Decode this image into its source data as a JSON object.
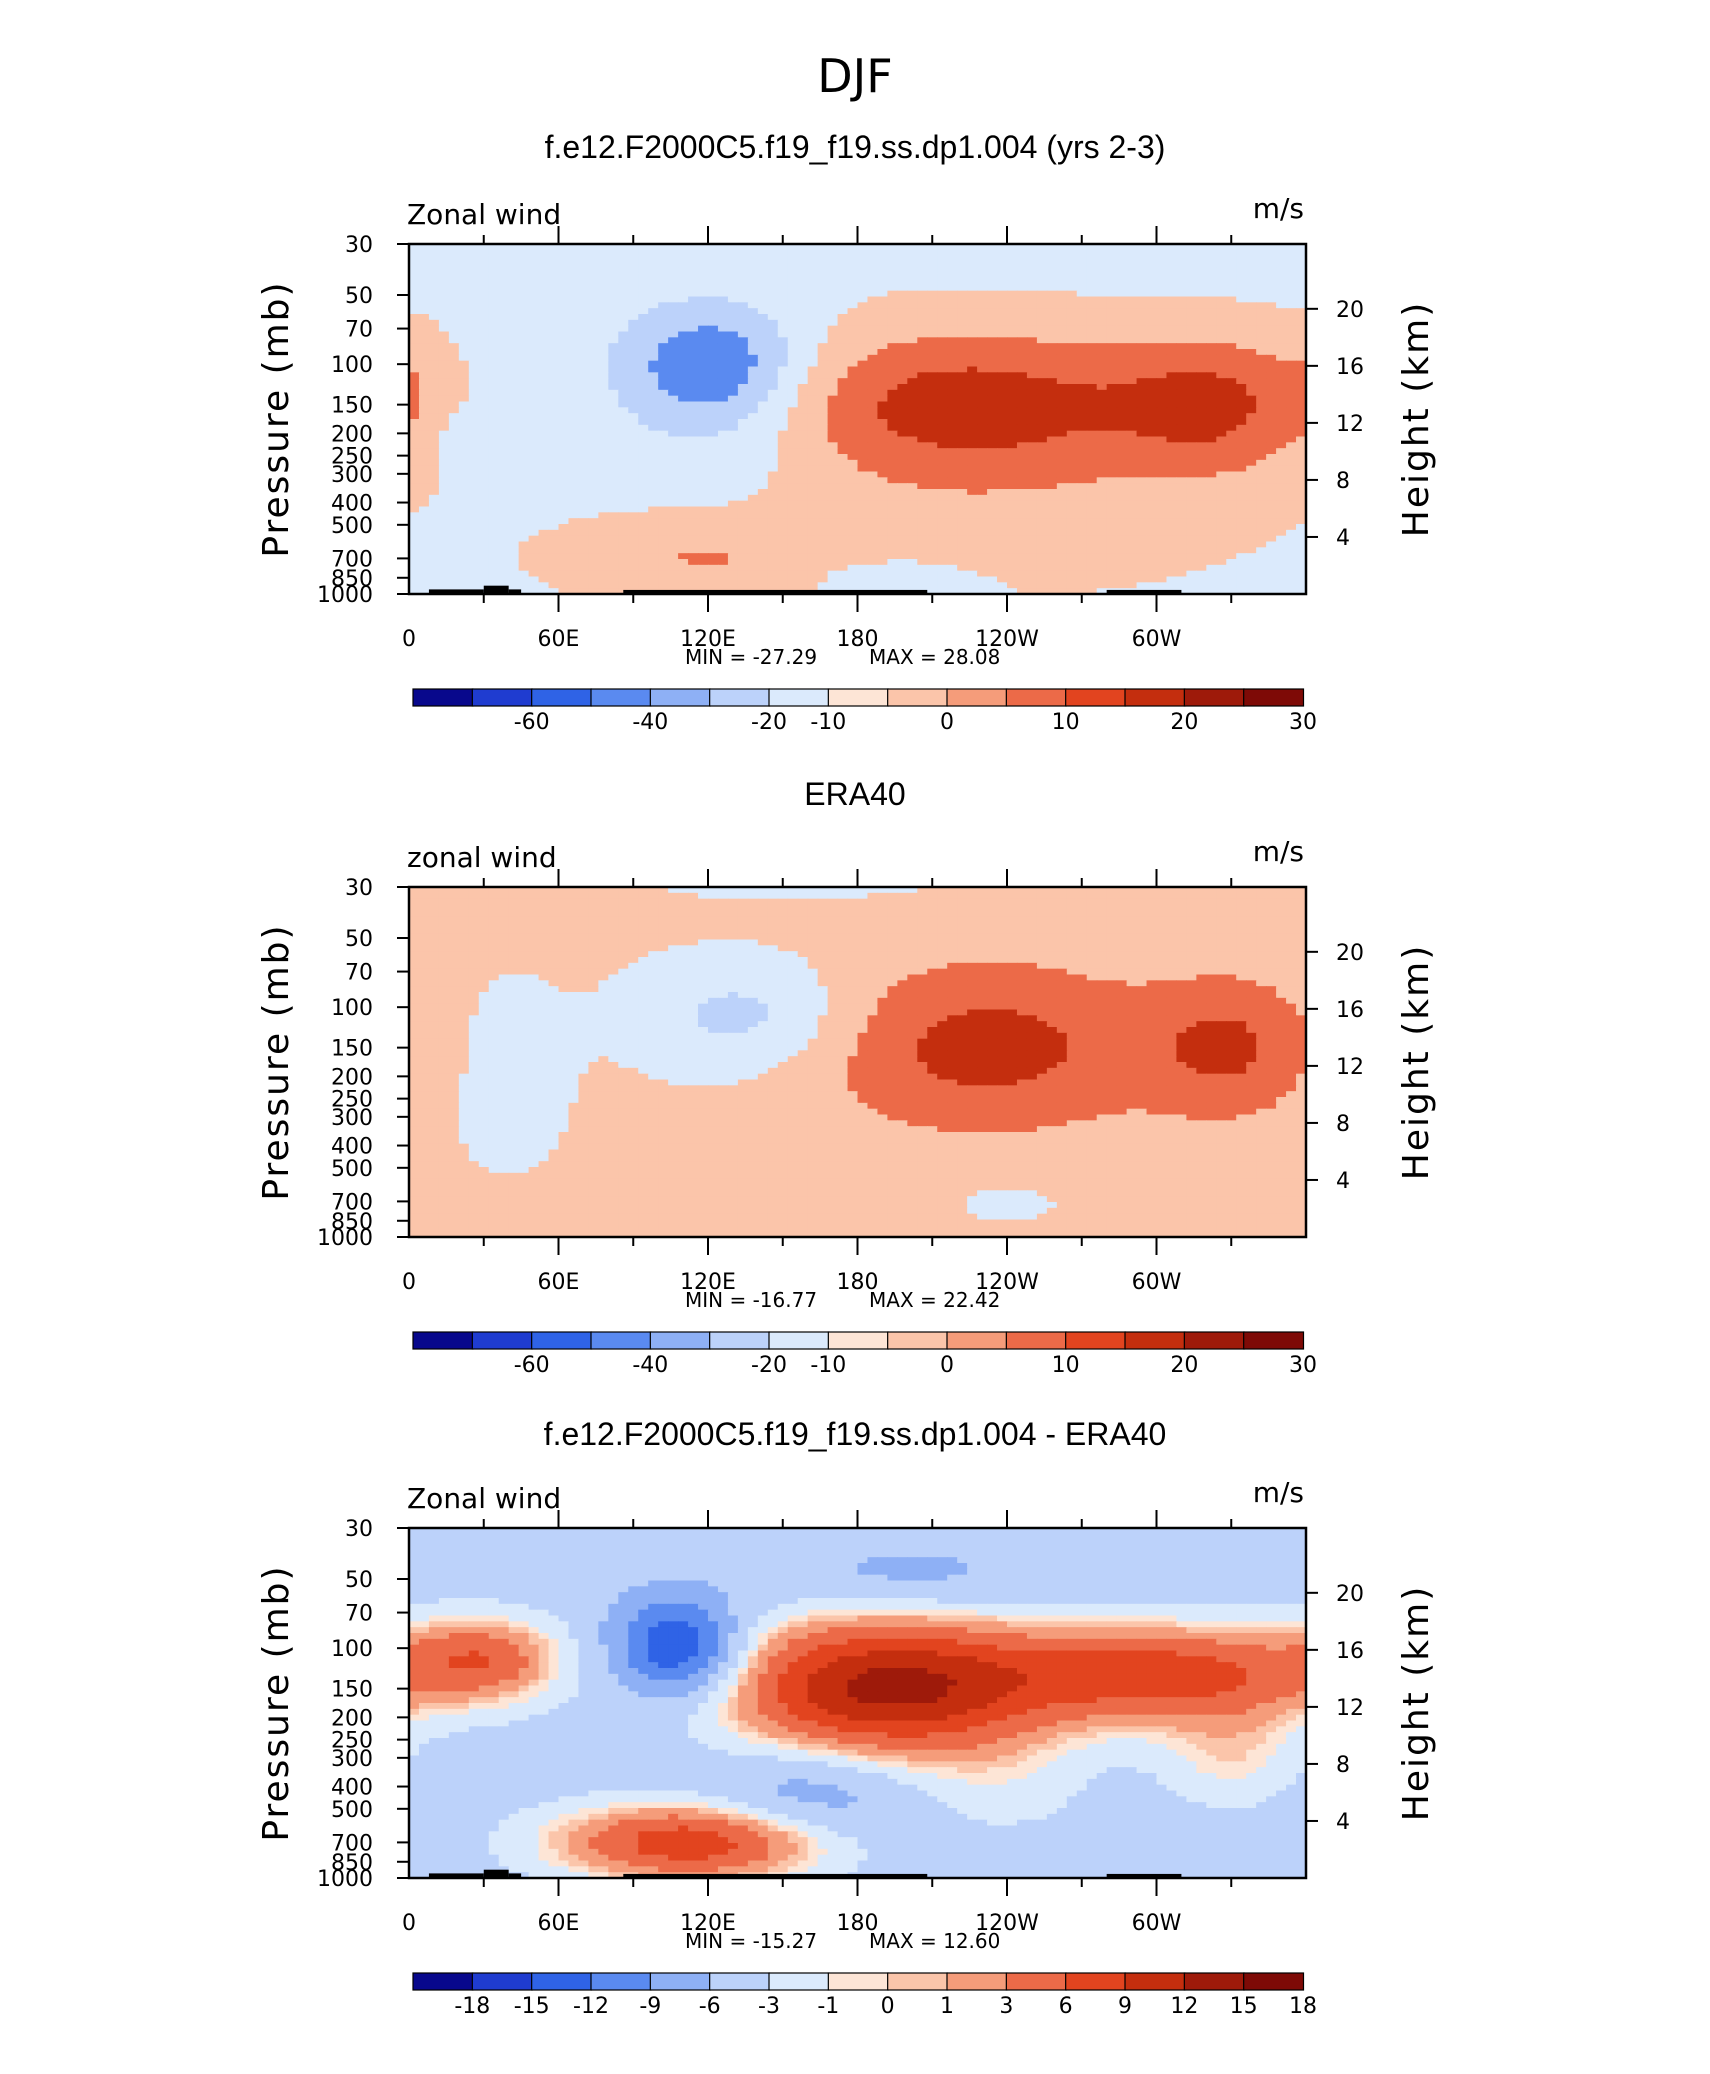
{
  "figure_title": "DJF",
  "colors": {
    "neg": [
      "#08088c",
      "#1f3cd0",
      "#2f63e6",
      "#5a8af0",
      "#8eb0f5",
      "#bcd2fa",
      "#dbeafc"
    ],
    "pos": [
      "#fde5d6",
      "#fbc5aa",
      "#f59c7a",
      "#ec6a48",
      "#e2441f",
      "#c42e0e",
      "#9e1a0a",
      "#7e0a06"
    ],
    "neutral": "#fde5d6",
    "land": "#000000"
  },
  "chart_data": [
    {
      "type": "contour",
      "title": "f.e12.F2000C5.f19_f19.ss.dp1.004 (yrs 2-3)",
      "left_label": "Zonal wind",
      "right_label": "m/s",
      "ylabel": "Pressure (mb)",
      "y2label": "Height (km)",
      "pressure_ticks": [
        30,
        50,
        70,
        100,
        150,
        200,
        250,
        300,
        400,
        500,
        700,
        850,
        1000
      ],
      "height_ticks": [
        4,
        8,
        12,
        16,
        20
      ],
      "lon_ticks": [
        {
          "lon": 0,
          "label": "0"
        },
        {
          "lon": 60,
          "label": "60E"
        },
        {
          "lon": 120,
          "label": "120E"
        },
        {
          "lon": 180,
          "label": "180"
        },
        {
          "lon": 240,
          "label": "120W"
        },
        {
          "lon": 300,
          "label": "60W"
        }
      ],
      "xlim": [
        0,
        360
      ],
      "ylim": [
        1000,
        30
      ],
      "min_label": "MIN = -27.29",
      "max_label": "MAX = 28.08",
      "stats": {
        "min": -27.29,
        "max": 28.08
      },
      "colorbar_labels": [
        "-60",
        "-40",
        "-20",
        "-10",
        "0",
        "10",
        "20",
        "30"
      ],
      "colorbar_levels": [
        -60,
        -40,
        -20,
        -10,
        0,
        10,
        20,
        30
      ],
      "background_value": -3,
      "features": [
        {
          "lon": 225,
          "p": 150,
          "amp": 28,
          "wl": 60,
          "wp": 0.55
        },
        {
          "lon": 325,
          "p": 150,
          "amp": 20,
          "wl": 28,
          "wp": 0.5
        },
        {
          "lon": 122,
          "p": 100,
          "amp": -27,
          "wl": 26,
          "wp": 0.42
        },
        {
          "lon": 125,
          "p": 200,
          "amp": -7,
          "wl": 30,
          "wp": 0.5
        },
        {
          "lon": 240,
          "p": 500,
          "amp": 6,
          "wl": 80,
          "wp": 0.6
        },
        {
          "lon": 115,
          "p": 700,
          "amp": 12,
          "wl": 40,
          "wp": 0.3
        },
        {
          "lon": 190,
          "p": 850,
          "amp": -6,
          "wl": 25,
          "wp": 0.15
        },
        {
          "lon": 2,
          "p": 120,
          "amp": 5,
          "wl": 10,
          "wp": 0.4
        },
        {
          "lon": 20,
          "p": 200,
          "amp": -5,
          "wl": 8,
          "wp": 0.2
        }
      ],
      "topography": [
        [
          8,
          30,
          955
        ],
        [
          30,
          40,
          920
        ],
        [
          40,
          45,
          955
        ],
        [
          86,
          208,
          960
        ],
        [
          280,
          310,
          960
        ]
      ]
    },
    {
      "type": "contour",
      "title": "ERA40",
      "left_label": "zonal wind",
      "right_label": "m/s",
      "ylabel": "Pressure (mb)",
      "y2label": "Height (km)",
      "pressure_ticks": [
        30,
        50,
        70,
        100,
        150,
        200,
        250,
        300,
        400,
        500,
        700,
        850,
        1000
      ],
      "height_ticks": [
        4,
        8,
        12,
        16,
        20
      ],
      "lon_ticks": [
        {
          "lon": 0,
          "label": "0"
        },
        {
          "lon": 60,
          "label": "60E"
        },
        {
          "lon": 120,
          "label": "120E"
        },
        {
          "lon": 180,
          "label": "180"
        },
        {
          "lon": 240,
          "label": "120W"
        },
        {
          "lon": 300,
          "label": "60W"
        }
      ],
      "xlim": [
        0,
        360
      ],
      "ylim": [
        1000,
        30
      ],
      "min_label": "MIN = -16.77",
      "max_label": "MAX = 22.42",
      "stats": {
        "min": -16.77,
        "max": 22.42
      },
      "colorbar_labels": [
        "-60",
        "-40",
        "-20",
        "-10",
        "0",
        "10",
        "20",
        "30"
      ],
      "colorbar_levels": [
        -60,
        -40,
        -20,
        -10,
        0,
        10,
        20,
        30
      ],
      "background_value": 2,
      "features": [
        {
          "lon": 232,
          "p": 150,
          "amp": 22,
          "wl": 48,
          "wp": 0.6
        },
        {
          "lon": 330,
          "p": 150,
          "amp": 18,
          "wl": 24,
          "wp": 0.5
        },
        {
          "lon": 135,
          "p": 110,
          "amp": -16,
          "wl": 30,
          "wp": 0.4
        },
        {
          "lon": 40,
          "p": 200,
          "amp": -6,
          "wl": 18,
          "wp": 0.7
        },
        {
          "lon": 120,
          "p": 700,
          "amp": 5,
          "wl": 35,
          "wp": 0.25
        },
        {
          "lon": 240,
          "p": 700,
          "amp": -4,
          "wl": 20,
          "wp": 0.2
        },
        {
          "lon": 160,
          "p": 30,
          "amp": -4,
          "wl": 50,
          "wp": 0.1
        }
      ],
      "topography": []
    },
    {
      "type": "contour",
      "title": "f.e12.F2000C5.f19_f19.ss.dp1.004 - ERA40",
      "left_label": "Zonal wind",
      "right_label": "m/s",
      "ylabel": "Pressure (mb)",
      "y2label": "Height (km)",
      "pressure_ticks": [
        30,
        50,
        70,
        100,
        150,
        200,
        250,
        300,
        400,
        500,
        700,
        850,
        1000
      ],
      "height_ticks": [
        4,
        8,
        12,
        16,
        20
      ],
      "lon_ticks": [
        {
          "lon": 0,
          "label": "0"
        },
        {
          "lon": 60,
          "label": "60E"
        },
        {
          "lon": 120,
          "label": "120E"
        },
        {
          "lon": 180,
          "label": "180"
        },
        {
          "lon": 240,
          "label": "120W"
        },
        {
          "lon": 300,
          "label": "60W"
        }
      ],
      "xlim": [
        0,
        360
      ],
      "ylim": [
        1000,
        30
      ],
      "min_label": "MIN = -15.27",
      "max_label": "MAX = 12.60",
      "stats": {
        "min": -15.27,
        "max": 12.6
      },
      "colorbar_labels": [
        "-18",
        "-15",
        "-12",
        "-9",
        "-6",
        "-3",
        "-1",
        "0",
        "1",
        "3",
        "6",
        "9",
        "12",
        "15",
        "18"
      ],
      "colorbar_levels": [
        -18,
        -15,
        -12,
        -9,
        -6,
        -3,
        -1,
        0,
        1,
        3,
        6,
        9,
        12,
        15,
        18
      ],
      "background_value": -4.5,
      "features": [
        {
          "lon": 190,
          "p": 150,
          "amp": 17,
          "wl": 45,
          "wp": 0.5
        },
        {
          "lon": 305,
          "p": 130,
          "amp": 12,
          "wl": 50,
          "wp": 0.35
        },
        {
          "lon": 30,
          "p": 110,
          "amp": 8,
          "wl": 22,
          "wp": 0.3
        },
        {
          "lon": 108,
          "p": 100,
          "amp": -12,
          "wl": 18,
          "wp": 0.35
        },
        {
          "lon": 115,
          "p": 700,
          "amp": 13,
          "wl": 40,
          "wp": 0.28
        },
        {
          "lon": 160,
          "p": 450,
          "amp": -5,
          "wl": 30,
          "wp": 0.4
        },
        {
          "lon": 240,
          "p": 400,
          "amp": 2,
          "wl": 25,
          "wp": 0.4
        },
        {
          "lon": 330,
          "p": 300,
          "amp": 4,
          "wl": 20,
          "wp": 0.35
        },
        {
          "lon": 200,
          "p": 50,
          "amp": -3,
          "wl": 40,
          "wp": 0.25
        }
      ],
      "topography": [
        [
          8,
          30,
          955
        ],
        [
          30,
          40,
          920
        ],
        [
          40,
          45,
          955
        ],
        [
          86,
          208,
          960
        ],
        [
          280,
          310,
          960
        ]
      ]
    }
  ]
}
